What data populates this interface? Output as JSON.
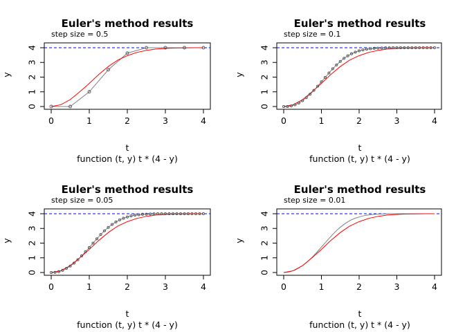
{
  "figure": {
    "panels": [
      {
        "title": "Euler's method results",
        "subtitle": "step size =  0.5",
        "xlabel": "t",
        "sublabel": "function (t, y) t * (4 - y)",
        "ylabel": "y"
      },
      {
        "title": "Euler's method results",
        "subtitle": "step size =  0.1",
        "xlabel": "t",
        "sublabel": "function (t, y) t * (4 - y)",
        "ylabel": "y"
      },
      {
        "title": "Euler's method results",
        "subtitle": "step size =  0.05",
        "xlabel": "t",
        "sublabel": "function (t, y) t * (4 - y)",
        "ylabel": "y"
      },
      {
        "title": "Euler's method results",
        "subtitle": "step size =  0.01",
        "xlabel": "t",
        "sublabel": "function (t, y) t * (4 - y)",
        "ylabel": "y"
      }
    ]
  },
  "chart_data": [
    {
      "type": "line",
      "title": "Euler's method results",
      "subtitle": "step size =  0.5",
      "xlabel": "t",
      "ylabel": "y",
      "xlim": [
        0,
        4
      ],
      "ylim": [
        0,
        4
      ],
      "xticks": [
        0,
        1,
        2,
        3,
        4
      ],
      "yticks": [
        0,
        1,
        2,
        3,
        4
      ],
      "hline": 4,
      "hline_color": "#0000ff",
      "exact_color": "#ff0000",
      "euler_color": "#808080",
      "x": [
        0,
        0.5,
        1,
        1.5,
        2,
        2.5,
        3,
        3.5,
        4
      ],
      "euler_y": [
        0,
        0,
        1,
        2.5,
        3.63,
        4.0,
        4.0,
        4.0,
        4.0
      ],
      "exact_x": [
        0,
        0.25,
        0.5,
        0.75,
        1,
        1.25,
        1.5,
        1.75,
        2,
        2.25,
        2.5,
        2.75,
        3,
        3.25,
        3.5,
        3.75,
        4
      ],
      "exact_y": [
        0,
        0.12,
        0.47,
        1.0,
        1.57,
        2.18,
        2.72,
        3.16,
        3.46,
        3.68,
        3.82,
        3.91,
        3.95,
        3.98,
        3.99,
        4.0,
        4.0
      ],
      "grid": false
    },
    {
      "type": "line",
      "title": "Euler's method results",
      "subtitle": "step size =  0.1",
      "xlabel": "t",
      "ylabel": "y",
      "xlim": [
        0,
        4
      ],
      "ylim": [
        0,
        4
      ],
      "xticks": [
        0,
        1,
        2,
        3,
        4
      ],
      "yticks": [
        0,
        1,
        2,
        3,
        4
      ],
      "hline": 4,
      "hline_color": "#0000ff",
      "exact_color": "#ff0000",
      "euler_color": "#808080",
      "x": [
        0,
        0.1,
        0.2,
        0.3,
        0.4,
        0.5,
        0.6,
        0.7,
        0.8,
        0.9,
        1.0,
        1.1,
        1.2,
        1.3,
        1.4,
        1.5,
        1.6,
        1.7,
        1.8,
        1.9,
        2.0,
        2.1,
        2.2,
        2.3,
        2.4,
        2.5,
        2.6,
        2.7,
        2.8,
        2.9,
        3.0,
        3.1,
        3.2,
        3.3,
        3.4,
        3.5,
        3.6,
        3.7,
        3.8,
        3.9,
        4.0
      ],
      "euler_y": [
        0,
        0,
        0.04,
        0.12,
        0.24,
        0.4,
        0.6,
        0.84,
        1.1,
        1.38,
        1.68,
        1.98,
        2.28,
        2.57,
        2.83,
        3.07,
        3.28,
        3.45,
        3.59,
        3.7,
        3.79,
        3.85,
        3.9,
        3.93,
        3.96,
        3.97,
        3.98,
        3.99,
        3.99,
        4.0,
        4.0,
        4.0,
        4.0,
        4.0,
        4.0,
        4.0,
        4.0,
        4.0,
        4.0,
        4.0,
        4.0
      ],
      "exact_x": [
        0,
        0.25,
        0.5,
        0.75,
        1,
        1.25,
        1.5,
        1.75,
        2,
        2.25,
        2.5,
        2.75,
        3,
        3.25,
        3.5,
        3.75,
        4
      ],
      "exact_y": [
        0,
        0.12,
        0.47,
        1.0,
        1.57,
        2.18,
        2.72,
        3.16,
        3.46,
        3.68,
        3.82,
        3.91,
        3.95,
        3.98,
        3.99,
        4.0,
        4.0
      ],
      "grid": false
    },
    {
      "type": "line",
      "title": "Euler's method results",
      "subtitle": "step size =  0.05",
      "xlabel": "t",
      "ylabel": "y",
      "xlim": [
        0,
        4
      ],
      "ylim": [
        0,
        4
      ],
      "xticks": [
        0,
        1,
        2,
        3,
        4
      ],
      "yticks": [
        0,
        1,
        2,
        3,
        4
      ],
      "hline": 4,
      "hline_color": "#0000ff",
      "exact_color": "#ff0000",
      "euler_color": "#808080",
      "x": [
        0,
        0.1,
        0.2,
        0.3,
        0.4,
        0.5,
        0.6,
        0.7,
        0.8,
        0.9,
        1.0,
        1.1,
        1.2,
        1.3,
        1.4,
        1.5,
        1.6,
        1.7,
        1.8,
        1.9,
        2.0,
        2.1,
        2.2,
        2.3,
        2.4,
        2.5,
        2.6,
        2.7,
        2.8,
        2.9,
        3.0,
        3.1,
        3.2,
        3.3,
        3.4,
        3.5,
        3.6,
        3.7,
        3.8,
        3.9,
        4.0
      ],
      "euler_y": [
        0,
        0.01,
        0.06,
        0.15,
        0.28,
        0.44,
        0.64,
        0.87,
        1.13,
        1.41,
        1.7,
        2.0,
        2.29,
        2.58,
        2.84,
        3.07,
        3.27,
        3.44,
        3.58,
        3.69,
        3.78,
        3.85,
        3.9,
        3.93,
        3.96,
        3.97,
        3.98,
        3.99,
        4.0,
        4.0,
        4.0,
        4.0,
        4.0,
        4.0,
        4.0,
        4.0,
        4.0,
        4.0,
        4.0,
        4.0,
        4.0
      ],
      "exact_x": [
        0,
        0.25,
        0.5,
        0.75,
        1,
        1.25,
        1.5,
        1.75,
        2,
        2.25,
        2.5,
        2.75,
        3,
        3.25,
        3.5,
        3.75,
        4
      ],
      "exact_y": [
        0,
        0.12,
        0.47,
        1.0,
        1.57,
        2.18,
        2.72,
        3.16,
        3.46,
        3.68,
        3.82,
        3.91,
        3.95,
        3.98,
        3.99,
        4.0,
        4.0
      ],
      "grid": false
    },
    {
      "type": "line",
      "title": "Euler's method results",
      "subtitle": "step size =  0.01",
      "xlabel": "t",
      "ylabel": "y",
      "xlim": [
        0,
        4
      ],
      "ylim": [
        0,
        4
      ],
      "xticks": [
        0,
        1,
        2,
        3,
        4
      ],
      "yticks": [
        0,
        1,
        2,
        3,
        4
      ],
      "hline": 4,
      "hline_color": "#0000ff",
      "exact_color": "#ff0000",
      "euler_color": "#000000",
      "x": [
        0,
        0.1,
        0.2,
        0.3,
        0.4,
        0.5,
        0.6,
        0.7,
        0.8,
        0.9,
        1.0,
        1.1,
        1.2,
        1.3,
        1.4,
        1.5,
        1.6,
        1.7,
        1.8,
        1.9,
        2.0,
        2.1,
        2.2,
        2.3,
        2.4,
        2.5,
        2.6,
        2.7,
        2.8,
        2.9,
        3.0,
        3.1,
        3.2,
        3.3,
        3.4,
        3.5,
        3.6,
        3.7,
        3.8,
        3.9,
        4.0
      ],
      "euler_y": [
        0,
        0.02,
        0.08,
        0.17,
        0.31,
        0.47,
        0.67,
        0.9,
        1.16,
        1.44,
        1.73,
        2.02,
        2.31,
        2.59,
        2.85,
        3.08,
        3.28,
        3.45,
        3.59,
        3.7,
        3.78,
        3.85,
        3.9,
        3.93,
        3.96,
        3.97,
        3.98,
        3.99,
        4.0,
        4.0,
        4.0,
        4.0,
        4.0,
        4.0,
        4.0,
        4.0,
        4.0,
        4.0,
        4.0,
        4.0,
        4.0
      ],
      "exact_x": [
        0,
        0.25,
        0.5,
        0.75,
        1,
        1.25,
        1.5,
        1.75,
        2,
        2.25,
        2.5,
        2.75,
        3,
        3.25,
        3.5,
        3.75,
        4
      ],
      "exact_y": [
        0,
        0.12,
        0.47,
        1.0,
        1.57,
        2.18,
        2.72,
        3.16,
        3.46,
        3.68,
        3.82,
        3.91,
        3.95,
        3.98,
        3.99,
        4.0,
        4.0
      ],
      "grid": false
    }
  ]
}
